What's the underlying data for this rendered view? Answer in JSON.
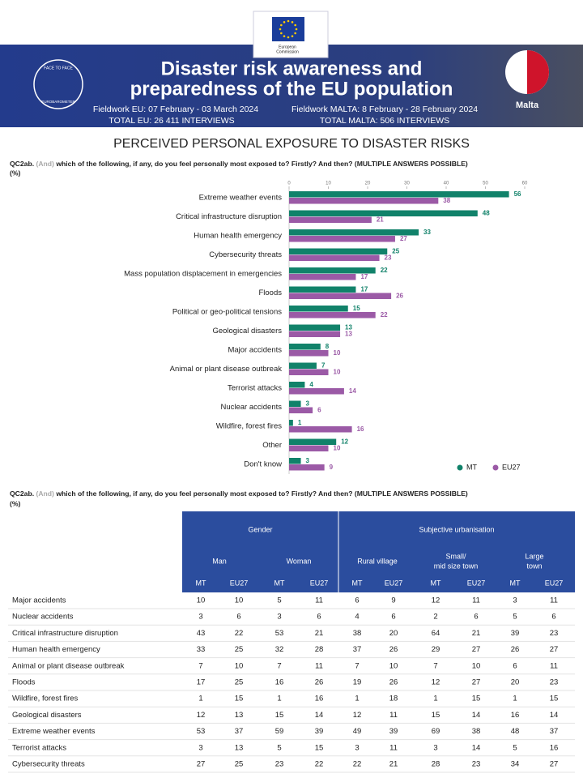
{
  "header": {
    "logo_text": [
      "European",
      "Commission"
    ],
    "badge": [
      "FACE TO FACE",
      "EUROBAROMETER"
    ],
    "title_lines": [
      "Disaster risk awareness and",
      "preparedness of the EU population"
    ],
    "fieldwork_eu": "Fieldwork EU: 07 February - 03 March 2024",
    "total_eu": "TOTAL EU: 26 411 INTERVIEWS",
    "fieldwork_country": "Fieldwork MALTA: 8 February - 28 February 2024",
    "total_country": "TOTAL MALTA: 506 INTERVIEWS",
    "country": "Malta"
  },
  "section_title": "PERCEIVED PERSONAL EXPOSURE TO DISASTER RISKS",
  "question": {
    "code": "QC2ab.",
    "prefix": "(And)",
    "text": "which of the following, if any, do you feel personally most exposed to? Firstly? And then? (MULTIPLE ANSWERS POSSIBLE)",
    "unit": "(%)"
  },
  "chart_data": {
    "type": "bar",
    "orientation": "horizontal",
    "categories": [
      "Extreme weather events",
      "Critical infrastructure disruption",
      "Human health emergency",
      "Cybersecurity threats",
      "Mass population displacement in emergencies",
      "Floods",
      "Political or geo-political tensions",
      "Geological disasters",
      "Major accidents",
      "Animal or plant disease outbreak",
      "Terrorist attacks",
      "Nuclear accidents",
      "Wildfire, forest fires",
      "Other",
      "Don't know"
    ],
    "series": [
      {
        "name": "MT",
        "color": "#11826a",
        "values": [
          56,
          48,
          33,
          25,
          22,
          17,
          15,
          13,
          8,
          7,
          4,
          3,
          1,
          12,
          3
        ]
      },
      {
        "name": "EU27",
        "color": "#9b5aa6",
        "values": [
          38,
          21,
          27,
          23,
          17,
          26,
          22,
          13,
          10,
          10,
          14,
          6,
          16,
          10,
          9
        ]
      }
    ],
    "xlim": [
      0,
      60
    ],
    "xticks": [
      0,
      10,
      20,
      30,
      40,
      50,
      60
    ],
    "grid": false,
    "legend": "bottom-right"
  },
  "table": {
    "groups": [
      {
        "label": "Gender",
        "subgroups": [
          [
            "Man"
          ],
          [
            "Woman"
          ]
        ]
      },
      {
        "label": "Subjective urbanisation",
        "subgroups": [
          [
            "Rural village"
          ],
          [
            "Small/",
            "mid size town"
          ],
          [
            "Large",
            "town"
          ]
        ]
      }
    ],
    "columns": [
      "MT",
      "EU27",
      "MT",
      "EU27",
      "MT",
      "EU27",
      "MT",
      "EU27",
      "MT",
      "EU27"
    ],
    "rows": [
      [
        "Major accidents",
        10,
        10,
        5,
        11,
        6,
        9,
        12,
        11,
        3,
        11
      ],
      [
        "Nuclear accidents",
        3,
        6,
        3,
        6,
        4,
        6,
        2,
        6,
        5,
        6
      ],
      [
        "Critical infrastructure disruption",
        43,
        22,
        53,
        21,
        38,
        20,
        64,
        21,
        39,
        23
      ],
      [
        "Human health emergency",
        33,
        25,
        32,
        28,
        37,
        26,
        29,
        27,
        26,
        27
      ],
      [
        "Animal or plant disease outbreak",
        7,
        10,
        7,
        11,
        7,
        10,
        7,
        10,
        6,
        11
      ],
      [
        "Floods",
        17,
        25,
        16,
        26,
        19,
        26,
        12,
        27,
        20,
        23
      ],
      [
        "Wildfire, forest fires",
        1,
        15,
        1,
        16,
        1,
        18,
        1,
        15,
        1,
        15
      ],
      [
        "Geological disasters",
        12,
        13,
        15,
        14,
        12,
        11,
        15,
        14,
        16,
        14
      ],
      [
        "Extreme weather events",
        53,
        37,
        59,
        39,
        49,
        39,
        69,
        38,
        48,
        37
      ],
      [
        "Terrorist attacks",
        3,
        13,
        5,
        15,
        3,
        11,
        3,
        14,
        5,
        16
      ],
      [
        "Cybersecurity threats",
        27,
        25,
        23,
        22,
        22,
        21,
        28,
        23,
        34,
        27
      ]
    ]
  }
}
